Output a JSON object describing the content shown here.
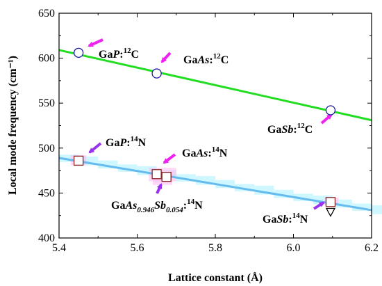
{
  "chart_data": {
    "type": "scatter",
    "xlabel": "Lattice constant (Å)",
    "ylabel": "Local mode frequency (cm⁻¹)",
    "xlim": [
      5.4,
      6.2
    ],
    "ylim": [
      400,
      650
    ],
    "xticks": [
      "5.4",
      "5.6",
      "5.8",
      "6.0",
      "6.2"
    ],
    "yticks": [
      "400",
      "450",
      "500",
      "550",
      "600",
      "650"
    ],
    "fit_lines": [
      {
        "series": "12C",
        "color": "#22dd22",
        "x": [
          5.4,
          6.2
        ],
        "y": [
          609,
          531
        ]
      },
      {
        "series": "14N",
        "color": "#66bbee",
        "x": [
          5.4,
          6.2
        ],
        "y": [
          489,
          431
        ]
      }
    ],
    "series": [
      {
        "name": "12C",
        "marker": "circle",
        "color": "#1a1aaa",
        "points": [
          {
            "x": 5.45,
            "y": 606,
            "label": "GaP:12C"
          },
          {
            "x": 5.65,
            "y": 583,
            "label": "GaAs:12C"
          },
          {
            "x": 6.095,
            "y": 542,
            "label": "GaSb:12C"
          }
        ]
      },
      {
        "name": "14N",
        "marker": "square",
        "color": "#8b2222",
        "points": [
          {
            "x": 5.45,
            "y": 486,
            "label": "GaP:14N"
          },
          {
            "x": 5.65,
            "y": 471,
            "label": "GaAs:14N"
          },
          {
            "x": 5.675,
            "y": 468,
            "label": "GaAs0.946Sb0.054:14N"
          },
          {
            "x": 6.095,
            "y": 440,
            "label": "GaSb:14N"
          }
        ]
      },
      {
        "name": "triangle",
        "marker": "triangle-down",
        "color": "#000000",
        "points": [
          {
            "x": 6.095,
            "y": 429
          }
        ]
      }
    ],
    "annotations": {
      "gap_c": {
        "pre": "Ga",
        "it": "P",
        "post": ":",
        "sup": "12",
        "tail": "C"
      },
      "gaas_c": {
        "pre": "Ga",
        "it": "As",
        "post": ":",
        "sup": "12",
        "tail": "C"
      },
      "gasb_c": {
        "pre": "Ga",
        "it": "Sb",
        "post": ":",
        "sup": "12",
        "tail": "C"
      },
      "gap_n": {
        "pre": "Ga",
        "it": "P",
        "post": ":",
        "sup": "14",
        "tail": "N"
      },
      "gaas_n": {
        "pre": "Ga",
        "it": "As",
        "post": ":",
        "sup": "14",
        "tail": "N"
      },
      "gasb_n": {
        "pre": "Ga",
        "it": "Sb",
        "post": ":",
        "sup": "14",
        "tail": "N"
      },
      "alloy_n": {
        "pre": "Ga",
        "it1": "As",
        "sub1": "0.946",
        "it2": "Sb",
        "sub2": "0.054",
        "post": ":",
        "sup": "14",
        "tail": "N"
      }
    },
    "arrow_colors": {
      "magenta": "#ee22ee",
      "purple": "#9933ee"
    }
  }
}
